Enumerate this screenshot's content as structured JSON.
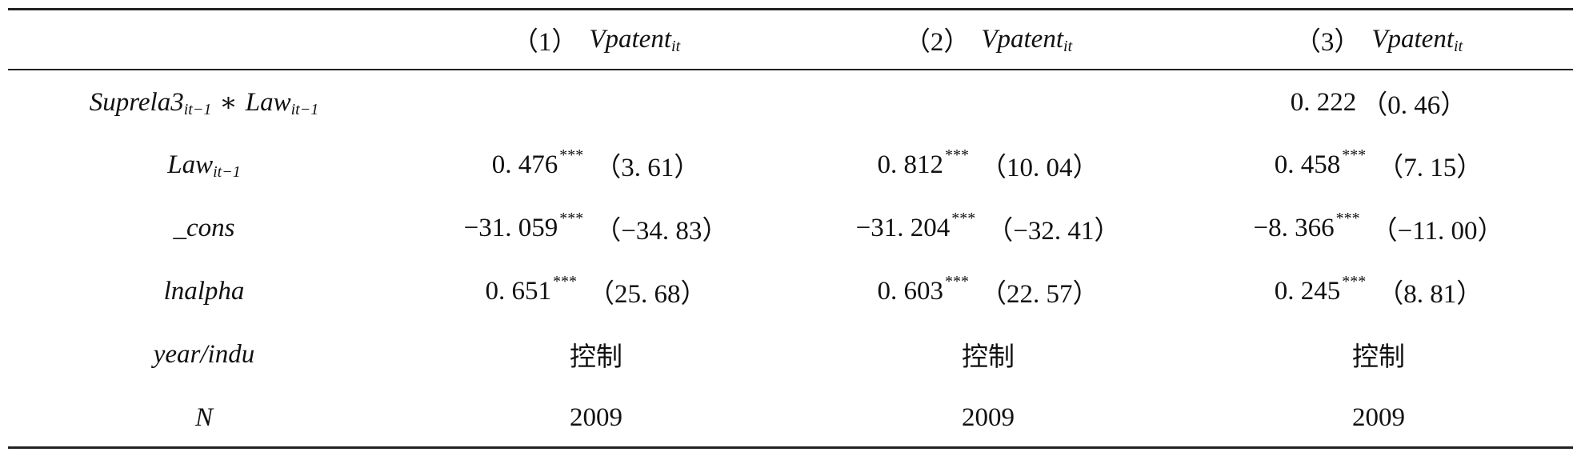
{
  "header": {
    "label_col": "",
    "columns": [
      {
        "num": "（1）",
        "var": "Vpatent",
        "sub": "it"
      },
      {
        "num": "（2）",
        "var": "Vpatent",
        "sub": "it"
      },
      {
        "num": "（3）",
        "var": "Vpatent",
        "sub": "it"
      }
    ]
  },
  "rows": [
    {
      "label": {
        "main": "Suprela3",
        "sub1": "it−1",
        "op": "∗",
        "main2": "Law",
        "sub2": "it−1"
      },
      "cells": [
        {
          "coef": "",
          "stars": "",
          "t": ""
        },
        {
          "coef": "",
          "stars": "",
          "t": ""
        },
        {
          "coef": "0. 222",
          "stars": "",
          "t": "（0. 46）"
        }
      ]
    },
    {
      "label": {
        "main": "Law",
        "sub1": "it−1"
      },
      "cells": [
        {
          "coef": "0. 476",
          "stars": "***",
          "t": "（3. 61）"
        },
        {
          "coef": "0. 812",
          "stars": "***",
          "t": "（10. 04）"
        },
        {
          "coef": "0. 458",
          "stars": "***",
          "t": "（7. 15）"
        }
      ]
    },
    {
      "label": {
        "main": "_cons"
      },
      "cells": [
        {
          "coef": "−31. 059",
          "stars": "***",
          "t": "（−34. 83）"
        },
        {
          "coef": "−31. 204",
          "stars": "***",
          "t": "（−32. 41）"
        },
        {
          "coef": "−8. 366",
          "stars": "***",
          "t": "（−11. 00）"
        }
      ]
    },
    {
      "label": {
        "main": "lnalpha"
      },
      "cells": [
        {
          "coef": "0. 651",
          "stars": "***",
          "t": "（25. 68）"
        },
        {
          "coef": "0. 603",
          "stars": "***",
          "t": "（22. 57）"
        },
        {
          "coef": "0. 245",
          "stars": "***",
          "t": "（8. 81）"
        }
      ]
    },
    {
      "label": {
        "main": "year/indu"
      },
      "cells": [
        {
          "text": "控制"
        },
        {
          "text": "控制"
        },
        {
          "text": "控制"
        }
      ]
    },
    {
      "label": {
        "main": "N"
      },
      "cells": [
        {
          "text": "2009"
        },
        {
          "text": "2009"
        },
        {
          "text": "2009"
        }
      ]
    }
  ]
}
